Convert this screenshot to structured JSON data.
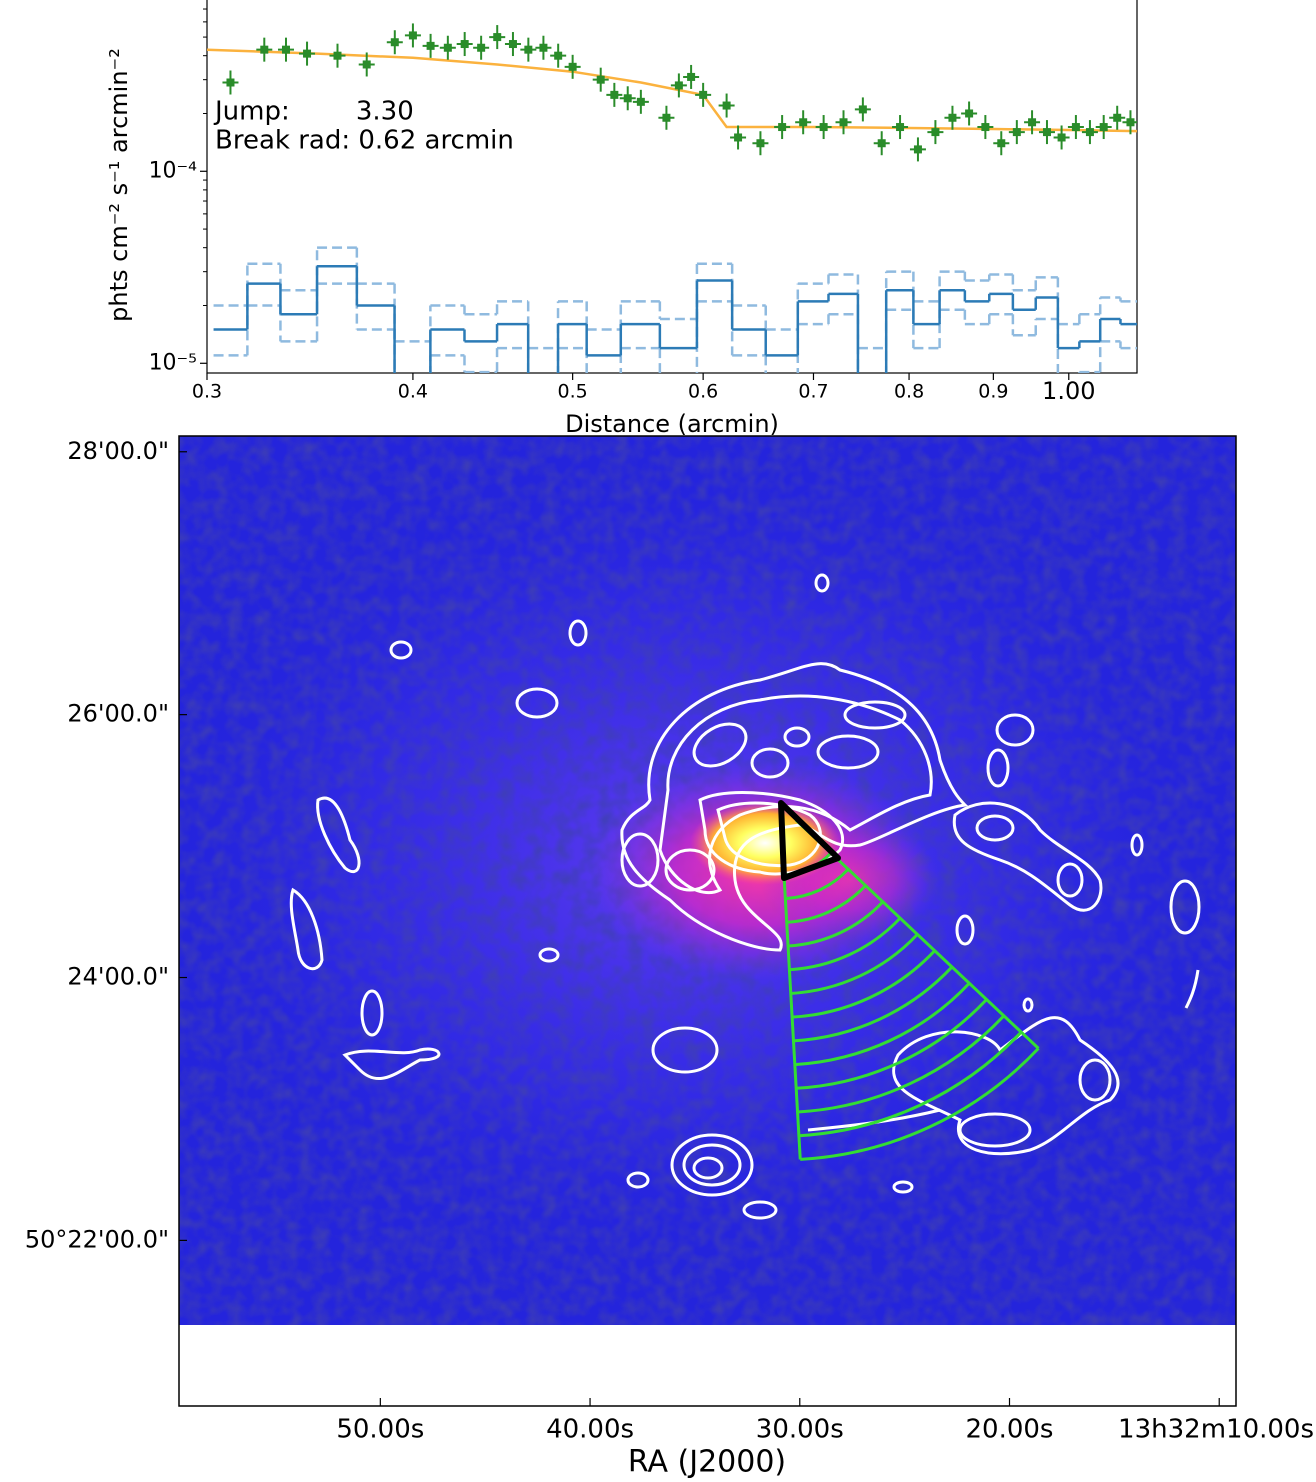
{
  "chart_data": [
    {
      "type": "profile",
      "xlabel": "Distance (arcmin)",
      "ylabel": "phts cm⁻² s⁻¹ arcmin⁻²",
      "annotations": [
        "Jump:        3.30",
        "Break rad: 0.62 arcmin"
      ],
      "xscale": "log",
      "yscale": "log",
      "xlim": [
        0.3,
        1.1
      ],
      "ylim": [
        8.9e-06,
        0.00078
      ],
      "xticks": [
        0.3,
        0.4,
        0.5,
        0.6,
        0.7,
        0.8,
        0.9,
        {
          "value": 1,
          "label": "1.00"
        }
      ],
      "yticks": [
        {
          "value": 1e-05,
          "label": "10⁻⁵"
        },
        {
          "value": 0.0001,
          "label": "10⁻⁴"
        }
      ],
      "yminorticks": [
        2e-05,
        3e-05,
        4e-05,
        5e-05,
        6e-05,
        7e-05,
        8e-05,
        9e-05,
        0.0002,
        0.0003,
        0.0004,
        0.0005,
        0.0006,
        0.0007
      ],
      "series": [
        {
          "color": "#2a8c2a",
          "style": "errorbar",
          "x": [
            0.31,
            0.325,
            0.335,
            0.345,
            0.36,
            0.375,
            0.39,
            0.4,
            0.41,
            0.42,
            0.43,
            0.44,
            0.45,
            0.46,
            0.47,
            0.48,
            0.49,
            0.5,
            0.52,
            0.53,
            0.54,
            0.55,
            0.57,
            0.58,
            0.59,
            0.6,
            0.62,
            0.63,
            0.65,
            0.67,
            0.69,
            0.71,
            0.73,
            0.75,
            0.77,
            0.79,
            0.81,
            0.83,
            0.85,
            0.87,
            0.89,
            0.91,
            0.93,
            0.95,
            0.97,
            0.99,
            1.01,
            1.03,
            1.05,
            1.07,
            1.09
          ],
          "values": [
            0.00029,
            0.00043,
            0.00043,
            0.00041,
            0.0004,
            0.00036,
            0.00047,
            0.00051,
            0.00045,
            0.00044,
            0.00046,
            0.00044,
            0.0005,
            0.00046,
            0.00043,
            0.00044,
            0.0004,
            0.00035,
            0.0003,
            0.00025,
            0.00024,
            0.00023,
            0.00019,
            0.00028,
            0.00031,
            0.00025,
            0.00022,
            0.00015,
            0.00014,
            0.00017,
            0.00018,
            0.00017,
            0.00018,
            0.00021,
            0.00014,
            0.00017,
            0.00013,
            0.00016,
            0.00019,
            0.0002,
            0.00017,
            0.00014,
            0.00016,
            0.00018,
            0.00016,
            0.00015,
            0.00017,
            0.00016,
            0.00017,
            0.00019,
            0.00018
          ]
        },
        {
          "color": "#fbb23e",
          "style": "line",
          "x": [
            0.3,
            0.35,
            0.4,
            0.45,
            0.5,
            0.55,
            0.6,
            0.62,
            0.7,
            0.8,
            0.9,
            1.0,
            1.1
          ],
          "values": [
            0.00043,
            0.00041,
            0.00039,
            0.00036,
            0.00033,
            0.00029,
            0.00025,
            0.00017,
            0.00017,
            0.000168,
            0.000166,
            0.000164,
            0.000162
          ]
        },
        {
          "color": "#2c7bb6",
          "style": "step",
          "x": [
            0.31,
            0.325,
            0.34,
            0.36,
            0.38,
            0.4,
            0.42,
            0.44,
            0.46,
            0.48,
            0.5,
            0.52,
            0.55,
            0.58,
            0.61,
            0.64,
            0.67,
            0.7,
            0.73,
            0.76,
            0.79,
            0.82,
            0.85,
            0.88,
            0.91,
            0.94,
            0.97,
            1.0,
            1.03,
            1.06,
            1.09
          ],
          "values": [
            1.5e-05,
            2.6e-05,
            1.8e-05,
            3.2e-05,
            2e-05,
            8e-06,
            1.5e-05,
            1.3e-05,
            1.6e-05,
            8e-06,
            1.6e-05,
            1.1e-05,
            1.6e-05,
            1.2e-05,
            2.7e-05,
            1.5e-05,
            1.1e-05,
            2.1e-05,
            2.3e-05,
            8e-06,
            2.4e-05,
            1.6e-05,
            2.4e-05,
            2.1e-05,
            2.3e-05,
            1.9e-05,
            2.2e-05,
            1.2e-05,
            1.3e-05,
            1.7e-05,
            1.6e-05
          ]
        },
        {
          "color": "#8fbadf",
          "style": "dashed-step",
          "x": [
            0.31,
            0.325,
            0.34,
            0.36,
            0.38,
            0.4,
            0.42,
            0.44,
            0.46,
            0.48,
            0.5,
            0.52,
            0.55,
            0.58,
            0.61,
            0.64,
            0.67,
            0.7,
            0.73,
            0.76,
            0.79,
            0.82,
            0.85,
            0.88,
            0.91,
            0.94,
            0.97,
            1.0,
            1.03,
            1.06,
            1.09
          ],
          "values": [
            2e-05,
            3.3e-05,
            2.4e-05,
            4e-05,
            2.6e-05,
            1.3e-05,
            2e-05,
            1.8e-05,
            2.1e-05,
            1.2e-05,
            2.1e-05,
            1.5e-05,
            2.1e-05,
            1.7e-05,
            3.3e-05,
            2e-05,
            1.5e-05,
            2.6e-05,
            2.9e-05,
            1.2e-05,
            3e-05,
            2.1e-05,
            3e-05,
            2.7e-05,
            2.9e-05,
            2.4e-05,
            2.8e-05,
            1.6e-05,
            1.8e-05,
            2.2e-05,
            2.1e-05
          ]
        },
        {
          "color": "#8fbadf",
          "style": "dashed-step",
          "x": [
            0.31,
            0.325,
            0.34,
            0.36,
            0.38,
            0.4,
            0.42,
            0.44,
            0.46,
            0.48,
            0.5,
            0.52,
            0.55,
            0.58,
            0.61,
            0.64,
            0.67,
            0.7,
            0.73,
            0.76,
            0.79,
            0.82,
            0.85,
            0.88,
            0.91,
            0.94,
            0.97,
            1.0,
            1.03,
            1.06,
            1.09
          ],
          "values": [
            1.1e-05,
            2e-05,
            1.3e-05,
            2.6e-05,
            1.5e-05,
            5e-06,
            1.1e-05,
            9e-06,
            1.2e-05,
            5e-06,
            1.2e-05,
            7e-06,
            1.2e-05,
            8e-06,
            2.1e-05,
            1.1e-05,
            7e-06,
            1.6e-05,
            1.8e-05,
            5e-06,
            1.9e-05,
            1.2e-05,
            1.9e-05,
            1.6e-05,
            1.8e-05,
            1.4e-05,
            1.7e-05,
            8e-06,
            9e-06,
            1.3e-05,
            1.2e-05
          ]
        }
      ]
    },
    {
      "type": "image",
      "xlabel": "RA (J2000)",
      "xlim": [
        59.6,
        9.2
      ],
      "ylim": [
        20.74,
        28.12
      ],
      "xticks": [
        {
          "value": 50,
          "label": "50.00s"
        },
        {
          "value": 40,
          "label": "40.00s"
        },
        {
          "value": 30,
          "label": "30.00s"
        },
        {
          "value": 20,
          "label": "20.00s"
        },
        {
          "value": 10,
          "label": "13h32m10.00s"
        }
      ],
      "yticks": [
        {
          "value": 28,
          "label": "28'00.0\""
        },
        {
          "value": 26,
          "label": "26'00.0\""
        },
        {
          "value": 24,
          "label": "24'00.0\""
        },
        {
          "value": 22,
          "label": "50°22'00.0\""
        }
      ]
    }
  ]
}
